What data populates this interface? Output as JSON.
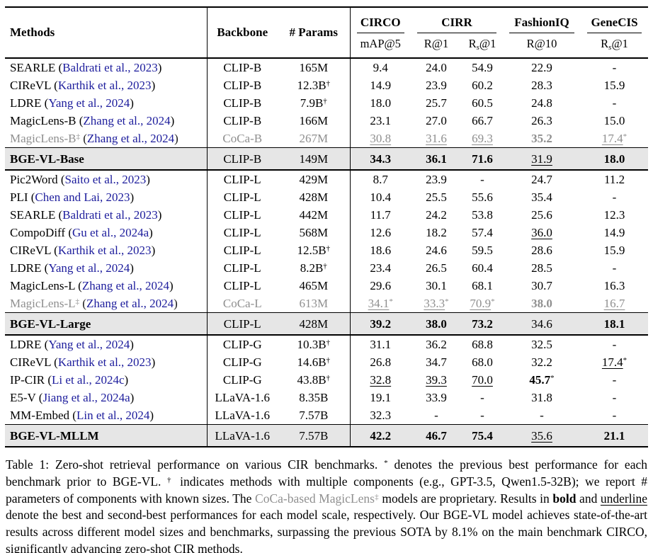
{
  "colors": {
    "citation_blue": "#1c1c9c",
    "gray_text": "#8f8f8f",
    "highlight_row_bg": "#e6e6e6"
  },
  "header": {
    "methods": "Methods",
    "backbone": "Backbone",
    "params": "# Params",
    "groups": [
      {
        "label": "CIRCO",
        "span": 1
      },
      {
        "label": "CIRR",
        "span": 2
      },
      {
        "label": "FashionIQ",
        "span": 1
      },
      {
        "label": "GeneCIS",
        "span": 1
      }
    ],
    "subheaders": [
      [
        {
          "text": "mAP@5"
        }
      ],
      [
        {
          "text": "R@1"
        }
      ],
      [
        {
          "text": "R"
        },
        {
          "text": "s",
          "sub": true
        },
        {
          "text": "@1"
        }
      ],
      [
        {
          "text": "R@10"
        }
      ],
      [
        {
          "text": "R"
        },
        {
          "text": "s",
          "sub": true
        },
        {
          "text": "@1"
        }
      ]
    ]
  },
  "sections": [
    {
      "rows": [
        {
          "method": "SEARLE",
          "method_sup": "",
          "cite": "Baldrati et al., 2023",
          "backbone": "CLIP-B",
          "params": "165M",
          "params_sup": "",
          "gray": false,
          "values": [
            [
              "9.4",
              "n",
              ""
            ],
            [
              "24.0",
              "n",
              ""
            ],
            [
              "54.9",
              "n",
              ""
            ],
            [
              "22.9",
              "n",
              ""
            ],
            [
              "-",
              "n",
              ""
            ]
          ]
        },
        {
          "method": "CIReVL",
          "method_sup": "",
          "cite": "Karthik et al., 2023",
          "backbone": "CLIP-B",
          "params": "12.3B",
          "params_sup": "†",
          "gray": false,
          "values": [
            [
              "14.9",
              "n",
              ""
            ],
            [
              "23.9",
              "n",
              ""
            ],
            [
              "60.2",
              "n",
              ""
            ],
            [
              "28.3",
              "n",
              ""
            ],
            [
              "15.9",
              "n",
              ""
            ]
          ]
        },
        {
          "method": "LDRE",
          "method_sup": "",
          "cite": "Yang et al., 2024",
          "backbone": "CLIP-B",
          "params": "7.9B",
          "params_sup": "†",
          "gray": false,
          "values": [
            [
              "18.0",
              "n",
              ""
            ],
            [
              "25.7",
              "n",
              ""
            ],
            [
              "60.5",
              "n",
              ""
            ],
            [
              "24.8",
              "n",
              ""
            ],
            [
              "-",
              "n",
              ""
            ]
          ]
        },
        {
          "method": "MagicLens-B",
          "method_sup": "",
          "cite": "Zhang et al., 2024",
          "backbone": "CLIP-B",
          "params": "166M",
          "params_sup": "",
          "gray": false,
          "values": [
            [
              "23.1",
              "n",
              ""
            ],
            [
              "27.0",
              "n",
              ""
            ],
            [
              "66.7",
              "n",
              ""
            ],
            [
              "26.3",
              "n",
              ""
            ],
            [
              "15.0",
              "n",
              ""
            ]
          ]
        },
        {
          "method": "MagicLens-B",
          "method_sup": "‡",
          "cite": "Zhang et al., 2024",
          "backbone": "CoCa-B",
          "params": "267M",
          "params_sup": "",
          "gray": true,
          "values": [
            [
              "30.8",
              "u",
              ""
            ],
            [
              "31.6",
              "u",
              ""
            ],
            [
              "69.3",
              "u",
              ""
            ],
            [
              "35.2",
              "b",
              ""
            ],
            [
              "17.4",
              "u",
              "*"
            ]
          ]
        }
      ],
      "summary": {
        "method": "BGE-VL-Base",
        "method_sup": "",
        "cite": "",
        "backbone": "CLIP-B",
        "params": "149M",
        "params_sup": "",
        "gray": false,
        "values": [
          [
            "34.3",
            "b",
            ""
          ],
          [
            "36.1",
            "b",
            ""
          ],
          [
            "71.6",
            "b",
            ""
          ],
          [
            "31.9",
            "u",
            ""
          ],
          [
            "18.0",
            "b",
            ""
          ]
        ]
      }
    },
    {
      "rows": [
        {
          "method": "Pic2Word",
          "method_sup": "",
          "cite": "Saito et al., 2023",
          "backbone": "CLIP-L",
          "params": "429M",
          "params_sup": "",
          "gray": false,
          "values": [
            [
              "8.7",
              "n",
              ""
            ],
            [
              "23.9",
              "n",
              ""
            ],
            [
              "-",
              "n",
              ""
            ],
            [
              "24.7",
              "n",
              ""
            ],
            [
              "11.2",
              "n",
              ""
            ]
          ]
        },
        {
          "method": "PLI",
          "method_sup": "",
          "cite": "Chen and Lai, 2023",
          "backbone": "CLIP-L",
          "params": "428M",
          "params_sup": "",
          "gray": false,
          "values": [
            [
              "10.4",
              "n",
              ""
            ],
            [
              "25.5",
              "n",
              ""
            ],
            [
              "55.6",
              "n",
              ""
            ],
            [
              "35.4",
              "n",
              ""
            ],
            [
              "-",
              "n",
              ""
            ]
          ]
        },
        {
          "method": "SEARLE",
          "method_sup": "",
          "cite": "Baldrati et al., 2023",
          "backbone": "CLIP-L",
          "params": "442M",
          "params_sup": "",
          "gray": false,
          "values": [
            [
              "11.7",
              "n",
              ""
            ],
            [
              "24.2",
              "n",
              ""
            ],
            [
              "53.8",
              "n",
              ""
            ],
            [
              "25.6",
              "n",
              ""
            ],
            [
              "12.3",
              "n",
              ""
            ]
          ]
        },
        {
          "method": "CompoDiff",
          "method_sup": "",
          "cite": "Gu et al., 2024a",
          "backbone": "CLIP-L",
          "params": "568M",
          "params_sup": "",
          "gray": false,
          "values": [
            [
              "12.6",
              "n",
              ""
            ],
            [
              "18.2",
              "n",
              ""
            ],
            [
              "57.4",
              "n",
              ""
            ],
            [
              "36.0",
              "u",
              ""
            ],
            [
              "14.9",
              "n",
              ""
            ]
          ]
        },
        {
          "method": "CIReVL",
          "method_sup": "",
          "cite": "Karthik et al., 2023",
          "backbone": "CLIP-L",
          "params": "12.5B",
          "params_sup": "†",
          "gray": false,
          "values": [
            [
              "18.6",
              "n",
              ""
            ],
            [
              "24.6",
              "n",
              ""
            ],
            [
              "59.5",
              "n",
              ""
            ],
            [
              "28.6",
              "n",
              ""
            ],
            [
              "15.9",
              "n",
              ""
            ]
          ]
        },
        {
          "method": "LDRE",
          "method_sup": "",
          "cite": "Yang et al., 2024",
          "backbone": "CLIP-L",
          "params": "8.2B",
          "params_sup": "†",
          "gray": false,
          "values": [
            [
              "23.4",
              "n",
              ""
            ],
            [
              "26.5",
              "n",
              ""
            ],
            [
              "60.4",
              "n",
              ""
            ],
            [
              "28.5",
              "n",
              ""
            ],
            [
              "-",
              "n",
              ""
            ]
          ]
        },
        {
          "method": "MagicLens-L",
          "method_sup": "",
          "cite": "Zhang et al., 2024",
          "backbone": "CLIP-L",
          "params": "465M",
          "params_sup": "",
          "gray": false,
          "values": [
            [
              "29.6",
              "n",
              ""
            ],
            [
              "30.1",
              "n",
              ""
            ],
            [
              "68.1",
              "n",
              ""
            ],
            [
              "30.7",
              "n",
              ""
            ],
            [
              "16.3",
              "n",
              ""
            ]
          ]
        },
        {
          "method": "MagicLens-L",
          "method_sup": "‡",
          "cite": "Zhang et al., 2024",
          "backbone": "CoCa-L",
          "params": "613M",
          "params_sup": "",
          "gray": true,
          "values": [
            [
              "34.1",
              "u",
              "*"
            ],
            [
              "33.3",
              "u",
              "*"
            ],
            [
              "70.9",
              "u",
              "*"
            ],
            [
              "38.0",
              "b",
              ""
            ],
            [
              "16.7",
              "u",
              ""
            ]
          ]
        }
      ],
      "summary": {
        "method": "BGE-VL-Large",
        "method_sup": "",
        "cite": "",
        "backbone": "CLIP-L",
        "params": "428M",
        "params_sup": "",
        "gray": false,
        "values": [
          [
            "39.2",
            "b",
            ""
          ],
          [
            "38.0",
            "b",
            ""
          ],
          [
            "73.2",
            "b",
            ""
          ],
          [
            "34.6",
            "n",
            ""
          ],
          [
            "18.1",
            "b",
            ""
          ]
        ]
      }
    },
    {
      "rows": [
        {
          "method": "LDRE",
          "method_sup": "",
          "cite": "Yang et al., 2024",
          "backbone": "CLIP-G",
          "params": "10.3B",
          "params_sup": "†",
          "gray": false,
          "values": [
            [
              "31.1",
              "n",
              ""
            ],
            [
              "36.2",
              "n",
              ""
            ],
            [
              "68.8",
              "n",
              ""
            ],
            [
              "32.5",
              "n",
              ""
            ],
            [
              "-",
              "n",
              ""
            ]
          ]
        },
        {
          "method": "CIReVL",
          "method_sup": "",
          "cite": "Karthik et al., 2023",
          "backbone": "CLIP-G",
          "params": "14.6B",
          "params_sup": "†",
          "gray": false,
          "values": [
            [
              "26.8",
              "n",
              ""
            ],
            [
              "34.7",
              "n",
              ""
            ],
            [
              "68.0",
              "n",
              ""
            ],
            [
              "32.2",
              "n",
              ""
            ],
            [
              "17.4",
              "u",
              "*"
            ]
          ]
        },
        {
          "method": "IP-CIR",
          "method_sup": "",
          "cite": "Li et al., 2024c",
          "backbone": "CLIP-G",
          "params": "43.8B",
          "params_sup": "†",
          "gray": false,
          "values": [
            [
              "32.8",
              "u",
              ""
            ],
            [
              "39.3",
              "u",
              ""
            ],
            [
              "70.0",
              "u",
              ""
            ],
            [
              "45.7",
              "b",
              "*"
            ],
            [
              "-",
              "n",
              ""
            ]
          ]
        },
        {
          "method": "E5-V",
          "method_sup": "",
          "cite": "Jiang et al., 2024a",
          "backbone": "LLaVA-1.6",
          "params": "8.35B",
          "params_sup": "",
          "gray": false,
          "values": [
            [
              "19.1",
              "n",
              ""
            ],
            [
              "33.9",
              "n",
              ""
            ],
            [
              "-",
              "n",
              ""
            ],
            [
              "31.8",
              "n",
              ""
            ],
            [
              "-",
              "n",
              ""
            ]
          ]
        },
        {
          "method": "MM-Embed",
          "method_sup": "",
          "cite": "Lin et al., 2024",
          "backbone": "LLaVA-1.6",
          "params": "7.57B",
          "params_sup": "",
          "gray": false,
          "values": [
            [
              "32.3",
              "n",
              ""
            ],
            [
              "-",
              "n",
              ""
            ],
            [
              "-",
              "n",
              ""
            ],
            [
              "-",
              "n",
              ""
            ],
            [
              "-",
              "n",
              ""
            ]
          ]
        }
      ],
      "summary": {
        "method": "BGE-VL-MLLM",
        "method_sup": "",
        "cite": "",
        "backbone": "LLaVA-1.6",
        "params": "7.57B",
        "params_sup": "",
        "gray": false,
        "values": [
          [
            "42.2",
            "b",
            ""
          ],
          [
            "46.7",
            "b",
            ""
          ],
          [
            "75.4",
            "b",
            ""
          ],
          [
            "35.6",
            "u",
            ""
          ],
          [
            "21.1",
            "b",
            ""
          ]
        ]
      }
    }
  ],
  "caption": {
    "segments": [
      {
        "text": "Table 1: Zero-shot retrieval performance on various CIR benchmarks. ",
        "style": "normal"
      },
      {
        "text": "*",
        "style": "sup"
      },
      {
        "text": " denotes the previous best performance for each benchmark prior to BGE-VL. ",
        "style": "normal"
      },
      {
        "text": "†",
        "style": "sup"
      },
      {
        "text": " indicates methods with multiple components (e.g., GPT-3.5, Qwen1.5-32B); we report # parameters of components with known sizes. The ",
        "style": "normal"
      },
      {
        "text": "CoCa-based MagicLens",
        "style": "gray"
      },
      {
        "text": "‡",
        "style": "gray-sup"
      },
      {
        "text": " models are proprietary. Results in ",
        "style": "normal"
      },
      {
        "text": "bold",
        "style": "bold"
      },
      {
        "text": " and ",
        "style": "normal"
      },
      {
        "text": "underline",
        "style": "underline"
      },
      {
        "text": " denote the best and second-best performances for each model scale, respectively. Our BGE-VL model achieves state-of-the-art results across different model sizes and benchmarks, surpassing the previous SOTA by 8.1% on the main benchmark CIRCO, significantly advancing zero-shot CIR methods.",
        "style": "normal"
      }
    ]
  }
}
